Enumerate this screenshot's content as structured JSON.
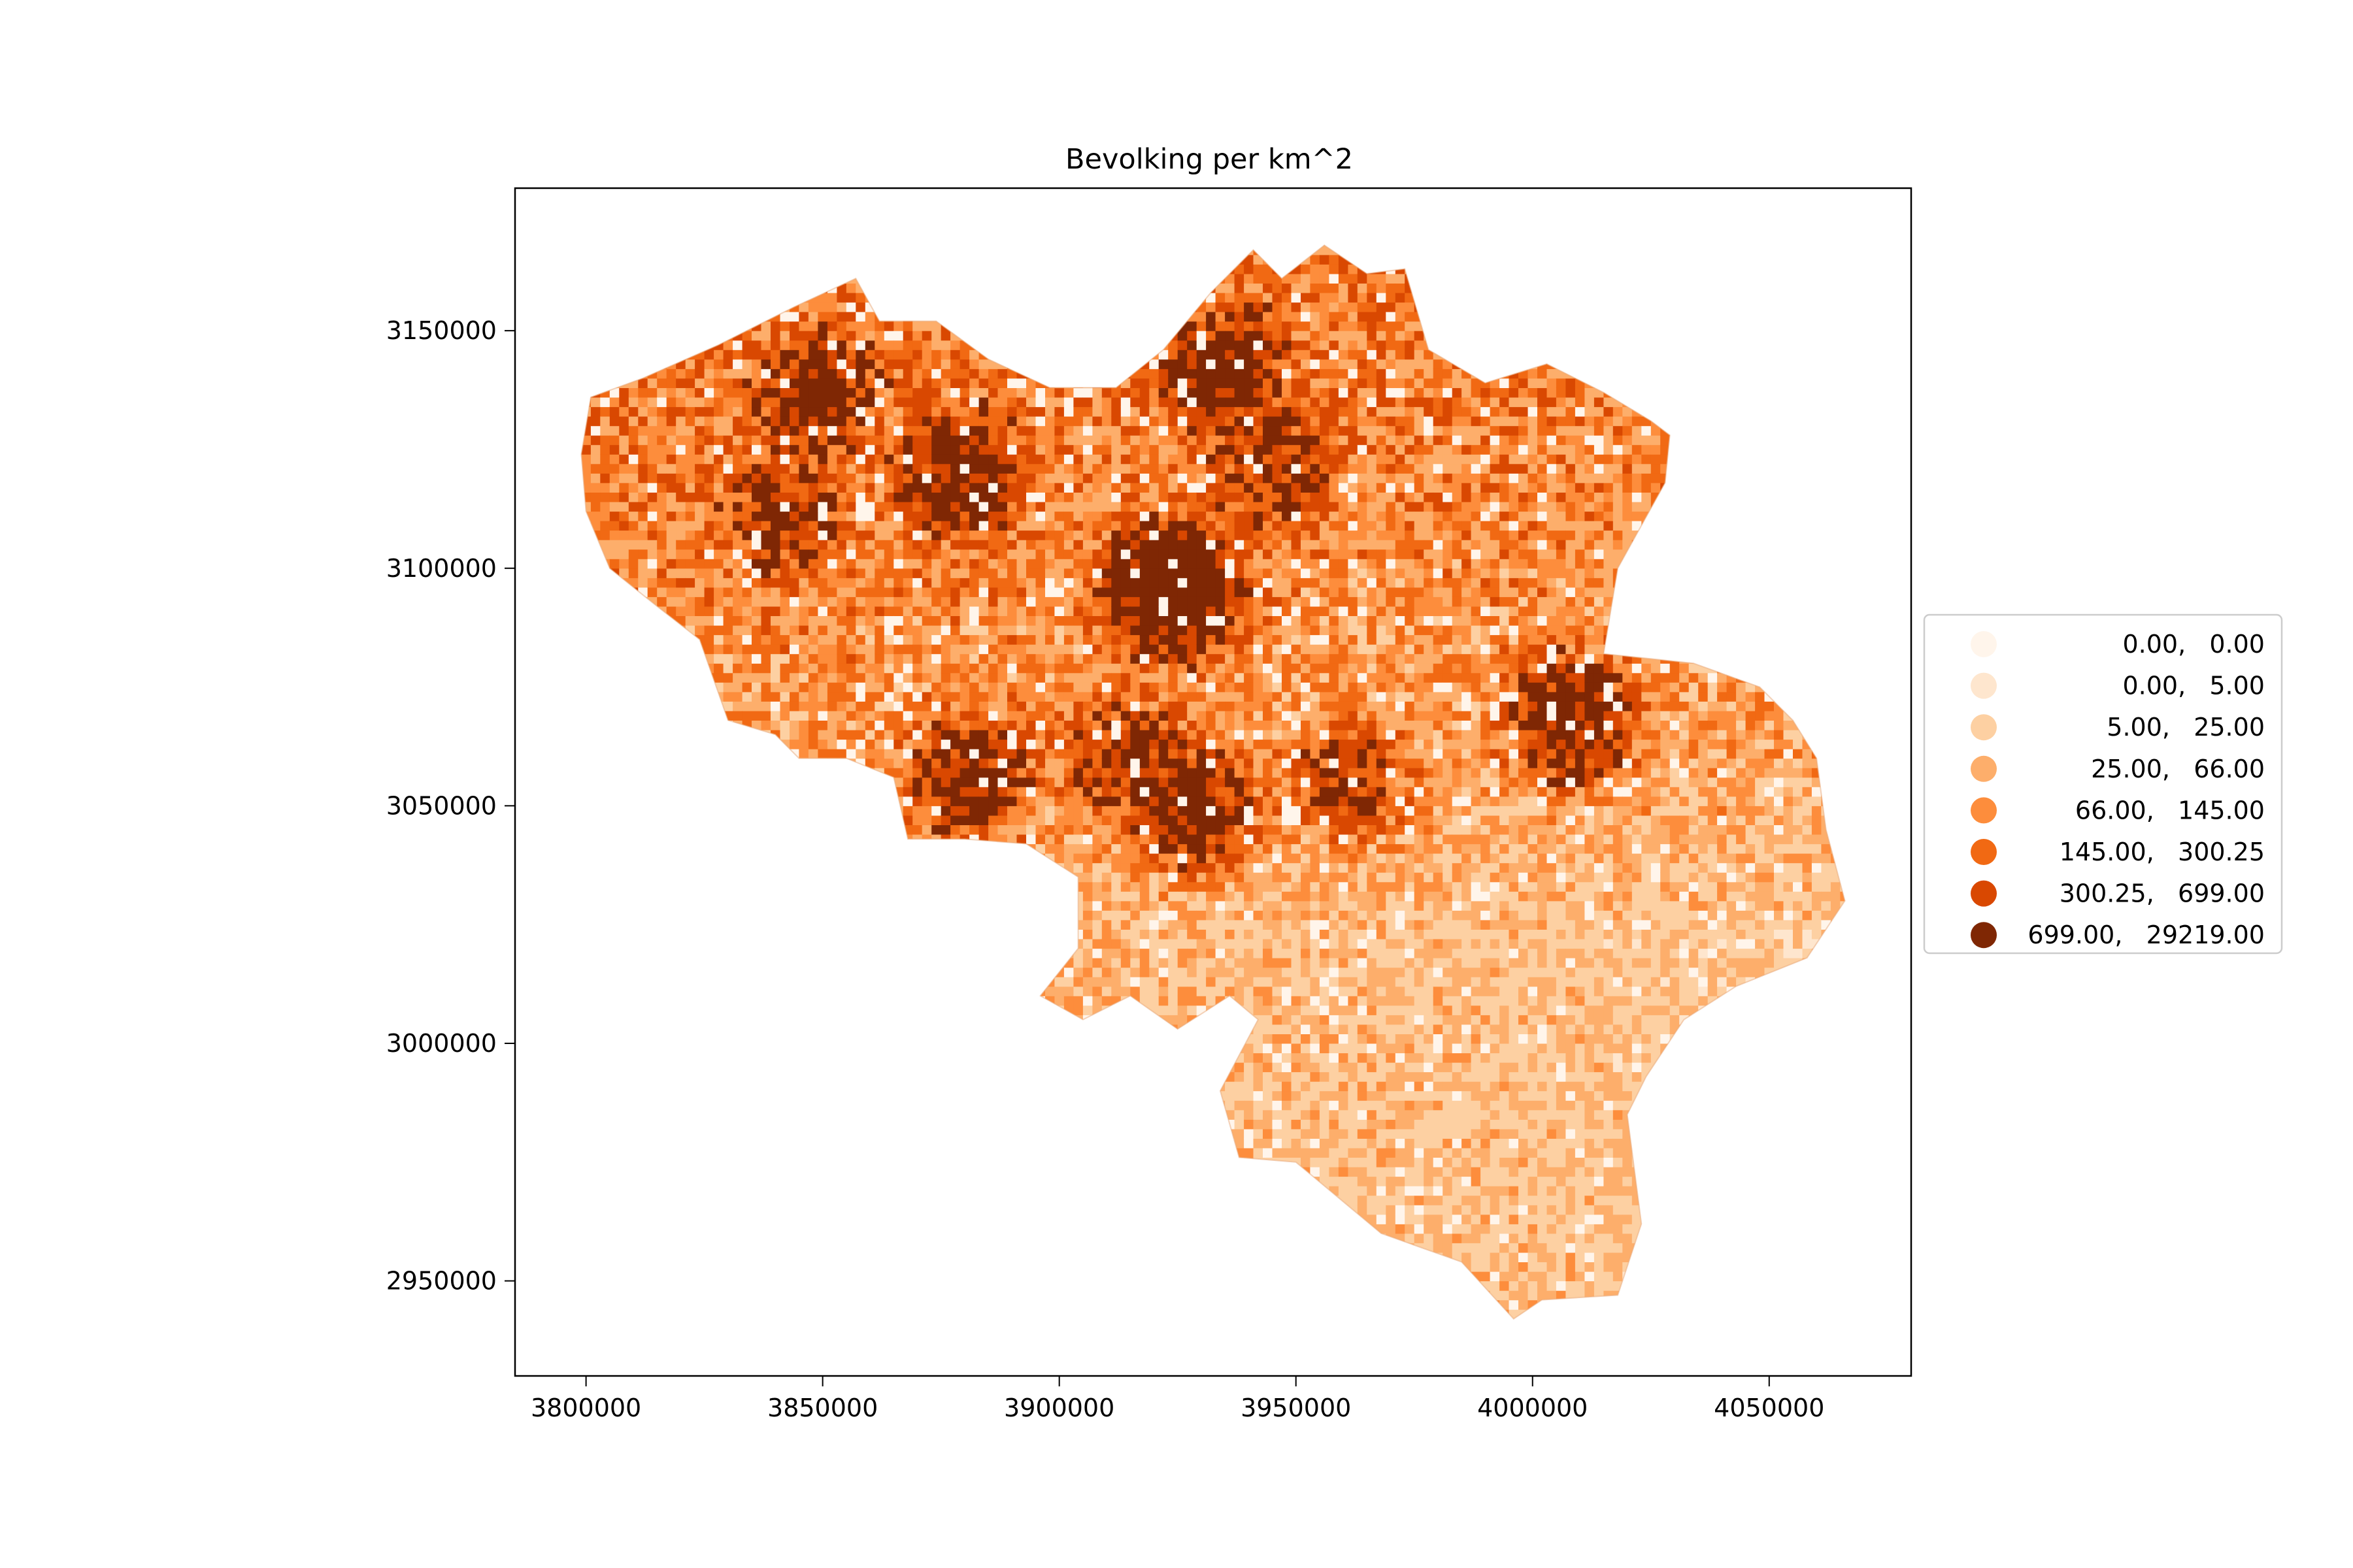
{
  "chart_data": {
    "type": "heatmap",
    "title": "Bevolking per km^2",
    "xlabel": "",
    "ylabel": "",
    "xlim": [
      3785000,
      4080000
    ],
    "ylim": [
      2930000,
      3180000
    ],
    "x_ticks": [
      3800000,
      3850000,
      3900000,
      3950000,
      4000000,
      4050000
    ],
    "x_tick_labels": [
      "3800000",
      "3850000",
      "3900000",
      "3950000",
      "4000000",
      "4050000"
    ],
    "y_ticks": [
      2950000,
      3000000,
      3050000,
      3100000,
      3150000
    ],
    "y_tick_labels": [
      "2950000",
      "3000000",
      "3050000",
      "3100000",
      "3150000"
    ],
    "grid": false,
    "legend_placement": "right, outside axes",
    "colormap": "Oranges",
    "classes": [
      {
        "label": "      0.00,     0.00",
        "range": [
          0.0,
          0.0
        ],
        "color": "#fff5eb"
      },
      {
        "label": "      0.00,     5.00",
        "range": [
          0.0,
          5.0
        ],
        "color": "#fee6ce"
      },
      {
        "label": "      5.00,    25.00",
        "range": [
          5.0,
          25.0
        ],
        "color": "#fdd0a2"
      },
      {
        "label": "    25.00,    66.00",
        "range": [
          25.0,
          66.0
        ],
        "color": "#fdae6b"
      },
      {
        "label": "    66.00,   145.00",
        "range": [
          66.0,
          145.0
        ],
        "color": "#fd8d3c"
      },
      {
        "label": "  145.00,   300.25",
        "range": [
          145.0,
          300.25
        ],
        "color": "#f16913"
      },
      {
        "label": "  300.25,   699.00",
        "range": [
          300.25,
          699.0
        ],
        "color": "#d94801"
      },
      {
        "label": "  699.00, 29219.00",
        "range": [
          699.0,
          29219.0
        ],
        "color": "#7f2704"
      }
    ],
    "outline": [
      [
        3801000,
        3136000
      ],
      [
        3812000,
        3140000
      ],
      [
        3828000,
        3147000
      ],
      [
        3844000,
        3155000
      ],
      [
        3857000,
        3161000
      ],
      [
        3862000,
        3152000
      ],
      [
        3874000,
        3152000
      ],
      [
        3885000,
        3144000
      ],
      [
        3898000,
        3138000
      ],
      [
        3912000,
        3138000
      ],
      [
        3922000,
        3146000
      ],
      [
        3932000,
        3158000
      ],
      [
        3941000,
        3167000
      ],
      [
        3947000,
        3161000
      ],
      [
        3956000,
        3168000
      ],
      [
        3965000,
        3162000
      ],
      [
        3973000,
        3163000
      ],
      [
        3978000,
        3146000
      ],
      [
        3990000,
        3139000
      ],
      [
        4003000,
        3143000
      ],
      [
        4015000,
        3137000
      ],
      [
        4025000,
        3131000
      ],
      [
        4029000,
        3128000
      ],
      [
        4028000,
        3118000
      ],
      [
        4018000,
        3100000
      ],
      [
        4015000,
        3082000
      ],
      [
        4034000,
        3080000
      ],
      [
        4048000,
        3075000
      ],
      [
        4055000,
        3068000
      ],
      [
        4060000,
        3060000
      ],
      [
        4062000,
        3045000
      ],
      [
        4066000,
        3030000
      ],
      [
        4058000,
        3018000
      ],
      [
        4043000,
        3012000
      ],
      [
        4032000,
        3005000
      ],
      [
        4024000,
        2993000
      ],
      [
        4020000,
        2985000
      ],
      [
        4023000,
        2962000
      ],
      [
        4018000,
        2947000
      ],
      [
        4002000,
        2946000
      ],
      [
        3996000,
        2942000
      ],
      [
        3985000,
        2954000
      ],
      [
        3968000,
        2960000
      ],
      [
        3950000,
        2975000
      ],
      [
        3938000,
        2976000
      ],
      [
        3934000,
        2990000
      ],
      [
        3942000,
        3005000
      ],
      [
        3936000,
        3010000
      ],
      [
        3925000,
        3003000
      ],
      [
        3915000,
        3010000
      ],
      [
        3905000,
        3005000
      ],
      [
        3896000,
        3010000
      ],
      [
        3904000,
        3020000
      ],
      [
        3904000,
        3035000
      ],
      [
        3893000,
        3042000
      ],
      [
        3880000,
        3043000
      ],
      [
        3868000,
        3043000
      ],
      [
        3865000,
        3056000
      ],
      [
        3855000,
        3060000
      ],
      [
        3845000,
        3060000
      ],
      [
        3840000,
        3065000
      ],
      [
        3830000,
        3068000
      ],
      [
        3824000,
        3085000
      ],
      [
        3815000,
        3092000
      ],
      [
        3805000,
        3100000
      ],
      [
        3800000,
        3112000
      ],
      [
        3799000,
        3124000
      ]
    ],
    "hotspots": [
      {
        "x": 3923000,
        "y": 3095000,
        "value": 10000
      },
      {
        "x": 3933000,
        "y": 3140000,
        "value": 4000
      },
      {
        "x": 3878000,
        "y": 3120000,
        "value": 3000
      },
      {
        "x": 4007000,
        "y": 3067000,
        "value": 4000
      },
      {
        "x": 3927000,
        "y": 3049000,
        "value": 3000
      },
      {
        "x": 3880000,
        "y": 3055000,
        "value": 2500
      },
      {
        "x": 3848000,
        "y": 3135000,
        "value": 2500
      },
      {
        "x": 3840000,
        "y": 3110000,
        "value": 1500
      },
      {
        "x": 3945000,
        "y": 3120000,
        "value": 1500
      },
      {
        "x": 3960000,
        "y": 3055000,
        "value": 1200
      },
      {
        "x": 3912000,
        "y": 3060000,
        "value": 1500
      }
    ]
  }
}
